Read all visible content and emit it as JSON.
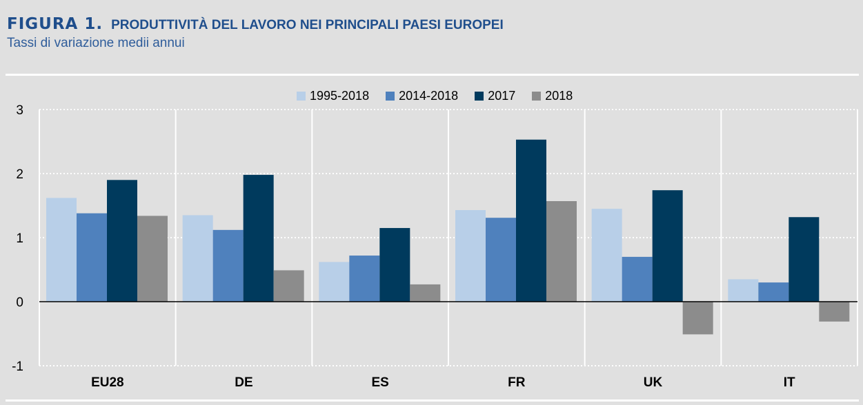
{
  "header": {
    "figure_label": "FIGURA 1.",
    "title": "PRODUTTIVITÀ DEL LAVORO NEI PRINCIPALI PAESI EUROPEI",
    "subtitle": "Tassi di variazione medii annui"
  },
  "chart_data": {
    "type": "bar",
    "title": "PRODUTTIVITÀ DEL LAVORO NEI PRINCIPALI PAESI EUROPEI",
    "subtitle": "Tassi di variazione medii annui",
    "xlabel": "",
    "ylabel": "",
    "categories": [
      "EU28",
      "DE",
      "ES",
      "FR",
      "UK",
      "IT"
    ],
    "ylim": [
      -1,
      3
    ],
    "yticks": [
      "3",
      "2",
      "1",
      "0",
      "-1"
    ],
    "grid": true,
    "legend_position": "top",
    "series": [
      {
        "name": "1995-2018",
        "color": "#b8cfe8",
        "values": [
          1.62,
          1.35,
          0.62,
          1.43,
          1.45,
          0.35
        ]
      },
      {
        "name": "2014-2018",
        "color": "#4f81bd",
        "values": [
          1.38,
          1.12,
          0.72,
          1.31,
          0.7,
          0.3
        ]
      },
      {
        "name": "2017",
        "color": "#003a5d",
        "values": [
          1.9,
          1.98,
          1.15,
          2.53,
          1.74,
          1.32
        ]
      },
      {
        "name": "2018",
        "color": "#8c8c8c",
        "values": [
          1.34,
          0.49,
          0.27,
          1.57,
          -0.51,
          -0.31
        ]
      }
    ]
  }
}
